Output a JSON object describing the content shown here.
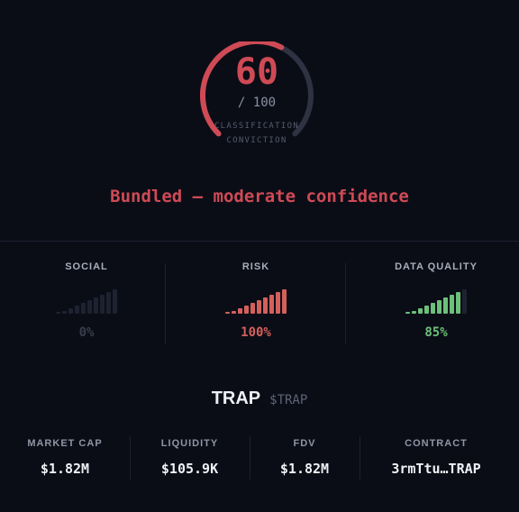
{
  "score": {
    "value": "60",
    "max_label": "/ 100",
    "fraction": 0.6,
    "caption_line1": "CLASSIFICATION",
    "caption_line2": "CONVICTION"
  },
  "verdict": "Bundled — moderate confidence",
  "metrics": [
    {
      "label": "SOCIAL",
      "value": "0%",
      "level": 0.0,
      "color": "#3a3e4c"
    },
    {
      "label": "RISK",
      "value": "100%",
      "level": 1.0,
      "color": "#d4605c"
    },
    {
      "label": "DATA QUALITY",
      "value": "85%",
      "level": 0.85,
      "color": "#6cc07a"
    }
  ],
  "token": {
    "name": "TRAP",
    "ticker": "$TRAP"
  },
  "stats": [
    {
      "label": "MARKET CAP",
      "value": "$1.82M"
    },
    {
      "label": "LIQUIDITY",
      "value": "$105.9K"
    },
    {
      "label": "FDV",
      "value": "$1.82M"
    },
    {
      "label": "CONTRACT",
      "value": "3rmTtu…TRAP"
    }
  ],
  "colors": {
    "accent_red": "#cf4a55",
    "track": "#2e3242",
    "bar_empty": "#1e2230"
  }
}
